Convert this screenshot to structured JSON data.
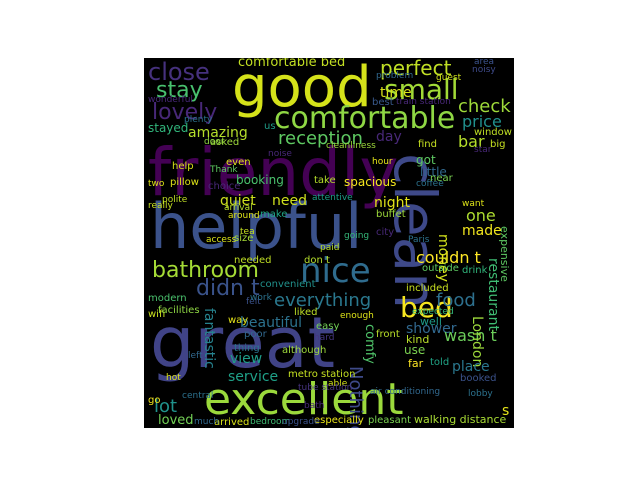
{
  "words": [
    {
      "text": "good",
      "color": "#d5e21a"
    },
    {
      "text": "friendly",
      "color": "#440154"
    },
    {
      "text": "helpful",
      "color": "#3b528b"
    },
    {
      "text": "great",
      "color": "#404387"
    },
    {
      "text": "clean",
      "color": "#3e4989"
    },
    {
      "text": "excellent",
      "color": "#9bd93c"
    },
    {
      "text": "comfortable",
      "color": "#8fd744"
    },
    {
      "text": "nice",
      "color": "#2f6c8e"
    },
    {
      "text": "close",
      "color": "#46317e"
    },
    {
      "text": "small",
      "color": "#a2da37"
    },
    {
      "text": "perfect",
      "color": "#c0df25"
    },
    {
      "text": "stay",
      "color": "#48c16e"
    },
    {
      "text": "lovely",
      "color": "#482878"
    },
    {
      "text": "comfortable bed",
      "color": "#c2df23"
    },
    {
      "text": "bathroom",
      "color": "#a5db36"
    },
    {
      "text": "didn t",
      "color": "#3a538b"
    },
    {
      "text": "everything",
      "color": "#2a788e"
    },
    {
      "text": "reception",
      "color": "#5ec962"
    },
    {
      "text": "amazing",
      "color": "#b5de2b"
    },
    {
      "text": "bed",
      "color": "#f6e620"
    },
    {
      "text": "check",
      "color": "#9fda3a"
    },
    {
      "text": "price",
      "color": "#21908d"
    },
    {
      "text": "bar",
      "color": "#b5de2b"
    },
    {
      "text": "food",
      "color": "#2d708e"
    },
    {
      "text": "service",
      "color": "#1fa088"
    },
    {
      "text": "view",
      "color": "#1f9e89"
    },
    {
      "text": "quiet",
      "color": "#cde11d"
    },
    {
      "text": "need",
      "color": "#d0e11c"
    },
    {
      "text": "time",
      "color": "#d8e219"
    },
    {
      "text": "night",
      "color": "#e2e418"
    },
    {
      "text": "one",
      "color": "#addc30"
    },
    {
      "text": "Nothing",
      "color": "#3e4a89"
    },
    {
      "text": "shower",
      "color": "#31688e"
    },
    {
      "text": "wasn t",
      "color": "#6ccd5a"
    },
    {
      "text": "lot",
      "color": "#20928c"
    },
    {
      "text": "loved",
      "color": "#73d056"
    },
    {
      "text": "fantastic",
      "color": "#26828e"
    },
    {
      "text": "beautiful",
      "color": "#2c728e"
    },
    {
      "text": "London",
      "color": "#9dd93b"
    },
    {
      "text": "restaurant",
      "color": "#3fbc73"
    },
    {
      "text": "couldn t",
      "color": "#fde725"
    },
    {
      "text": "money",
      "color": "#d2e21b"
    },
    {
      "text": "made",
      "color": "#f1e51d"
    },
    {
      "text": "comfy",
      "color": "#50c46a"
    },
    {
      "text": "place",
      "color": "#2a778e"
    },
    {
      "text": "expensive",
      "color": "#5ec962"
    },
    {
      "text": "booking",
      "color": "#4ac16d"
    },
    {
      "text": "stayed",
      "color": "#31b57b"
    },
    {
      "text": "breakfast",
      "color": "#3b528b"
    },
    {
      "text": "staff",
      "color": "#46337e"
    },
    {
      "text": "location",
      "color": "#3e4989"
    },
    {
      "text": "room",
      "color": "#404688"
    },
    {
      "text": "hotel",
      "color": "#482576"
    },
    {
      "text": "walking distance",
      "color": "#a8db34"
    },
    {
      "text": "metro station",
      "color": "#c5e021"
    },
    {
      "text": "arrived",
      "color": "#dae319"
    },
    {
      "text": "especially",
      "color": "#eae51a"
    },
    {
      "text": "pleasant",
      "color": "#7ad151"
    },
    {
      "text": "bedroom",
      "color": "#3fbc73"
    },
    {
      "text": "s",
      "color": "#e5e419"
    },
    {
      "text": "got",
      "color": "#5ec962"
    },
    {
      "text": "little",
      "color": "#31688e"
    },
    {
      "text": "well",
      "color": "#1e9c89"
    },
    {
      "text": "use",
      "color": "#7ad151"
    },
    {
      "text": "told",
      "color": "#20a486"
    },
    {
      "text": "far",
      "color": "#fde725"
    },
    {
      "text": "booked",
      "color": "#3b528b"
    },
    {
      "text": "thing",
      "color": "#2c738e"
    },
    {
      "text": "although",
      "color": "#9dd93b"
    },
    {
      "text": "hard",
      "color": "#453781"
    },
    {
      "text": "kind",
      "color": "#b8de29"
    },
    {
      "text": "wifi",
      "color": "#cae11f"
    },
    {
      "text": "go",
      "color": "#f1e51d"
    },
    {
      "text": "modern",
      "color": "#4ac16d"
    },
    {
      "text": "help",
      "color": "#d8e219"
    },
    {
      "text": "even",
      "color": "#dde318"
    },
    {
      "text": "asked",
      "color": "#9dd93b"
    },
    {
      "text": "window",
      "color": "#c0df25"
    },
    {
      "text": "take",
      "color": "#b5de2b"
    },
    {
      "text": "noise",
      "color": "#482878"
    },
    {
      "text": "convenient",
      "color": "#21918c"
    },
    {
      "text": "liked",
      "color": "#bddf26"
    },
    {
      "text": "way",
      "color": "#e5e419"
    },
    {
      "text": "poor",
      "color": "#31688e"
    },
    {
      "text": "facilities",
      "color": "#8fd744"
    },
    {
      "text": "included",
      "color": "#c8e020"
    },
    {
      "text": "spacious",
      "color": "#f4e61e"
    },
    {
      "text": "buffet",
      "color": "#9dd93b"
    },
    {
      "text": "best",
      "color": "#38598c"
    },
    {
      "text": "problem",
      "color": "#31688e"
    },
    {
      "text": "guest",
      "color": "#d0e11c"
    },
    {
      "text": "area",
      "color": "#3b528b"
    },
    {
      "text": "noisy",
      "color": "#3e4a89"
    },
    {
      "text": "train station",
      "color": "#482878"
    },
    {
      "text": "found",
      "color": "#31688e"
    },
    {
      "text": "wonderful",
      "color": "#482878"
    },
    {
      "text": "us",
      "color": "#1f9e89"
    },
    {
      "text": "day",
      "color": "#482878"
    },
    {
      "text": "outside",
      "color": "#5ec962"
    },
    {
      "text": "drink",
      "color": "#31b57b"
    },
    {
      "text": "needed",
      "color": "#c0df25"
    },
    {
      "text": "don t",
      "color": "#b5de2b"
    },
    {
      "text": "make",
      "color": "#20a486"
    },
    {
      "text": "cleanliness",
      "color": "#9dd93b"
    },
    {
      "text": "air conditioning",
      "color": "#31688e"
    },
    {
      "text": "front",
      "color": "#b8de29"
    },
    {
      "text": "enough",
      "color": "#dde318"
    },
    {
      "text": "bath",
      "color": "#482878"
    },
    {
      "text": "able",
      "color": "#d5e21a"
    },
    {
      "text": "central",
      "color": "#2c728e"
    },
    {
      "text": "upgrade",
      "color": "#3b528b"
    },
    {
      "text": "much",
      "color": "#31688e"
    },
    {
      "text": "hour",
      "color": "#e5e419"
    },
    {
      "text": "tube station",
      "color": "#46337e"
    },
    {
      "text": "paid",
      "color": "#b5de2b"
    },
    {
      "text": "choice",
      "color": "#482878"
    },
    {
      "text": "pillow",
      "color": "#dde318"
    },
    {
      "text": "access",
      "color": "#dae319"
    },
    {
      "text": "size",
      "color": "#a5db36"
    },
    {
      "text": "going",
      "color": "#35b779"
    },
    {
      "text": "easy",
      "color": "#73d056"
    },
    {
      "text": "plenty",
      "color": "#2c728e"
    },
    {
      "text": "Thank",
      "color": "#5ec962"
    },
    {
      "text": "door",
      "color": "#90d743"
    },
    {
      "text": "lobby",
      "color": "#2c728e"
    },
    {
      "text": "star",
      "color": "#482878"
    },
    {
      "text": "big",
      "color": "#c5e021"
    },
    {
      "text": "coffee",
      "color": "#2c728e"
    },
    {
      "text": "find",
      "color": "#c5e021"
    },
    {
      "text": "near",
      "color": "#7ad151"
    },
    {
      "text": "want",
      "color": "#dde318"
    },
    {
      "text": "Paris",
      "color": "#2c728e"
    },
    {
      "text": "city",
      "color": "#482878"
    },
    {
      "text": "tea",
      "color": "#c5e021"
    },
    {
      "text": "hot",
      "color": "#dde318"
    },
    {
      "text": "left",
      "color": "#31688e"
    },
    {
      "text": "around",
      "color": "#dde318"
    },
    {
      "text": "arrival",
      "color": "#b5de2b"
    },
    {
      "text": "really",
      "color": "#c5e021"
    },
    {
      "text": "two",
      "color": "#dde318"
    },
    {
      "text": "polite",
      "color": "#c0df25"
    },
    {
      "text": "attentive",
      "color": "#1f9e89"
    },
    {
      "text": "expected",
      "color": "#35b779"
    },
    {
      "text": "felt",
      "color": "#3b528b"
    },
    {
      "text": "work",
      "color": "#2c728e"
    }
  ]
}
